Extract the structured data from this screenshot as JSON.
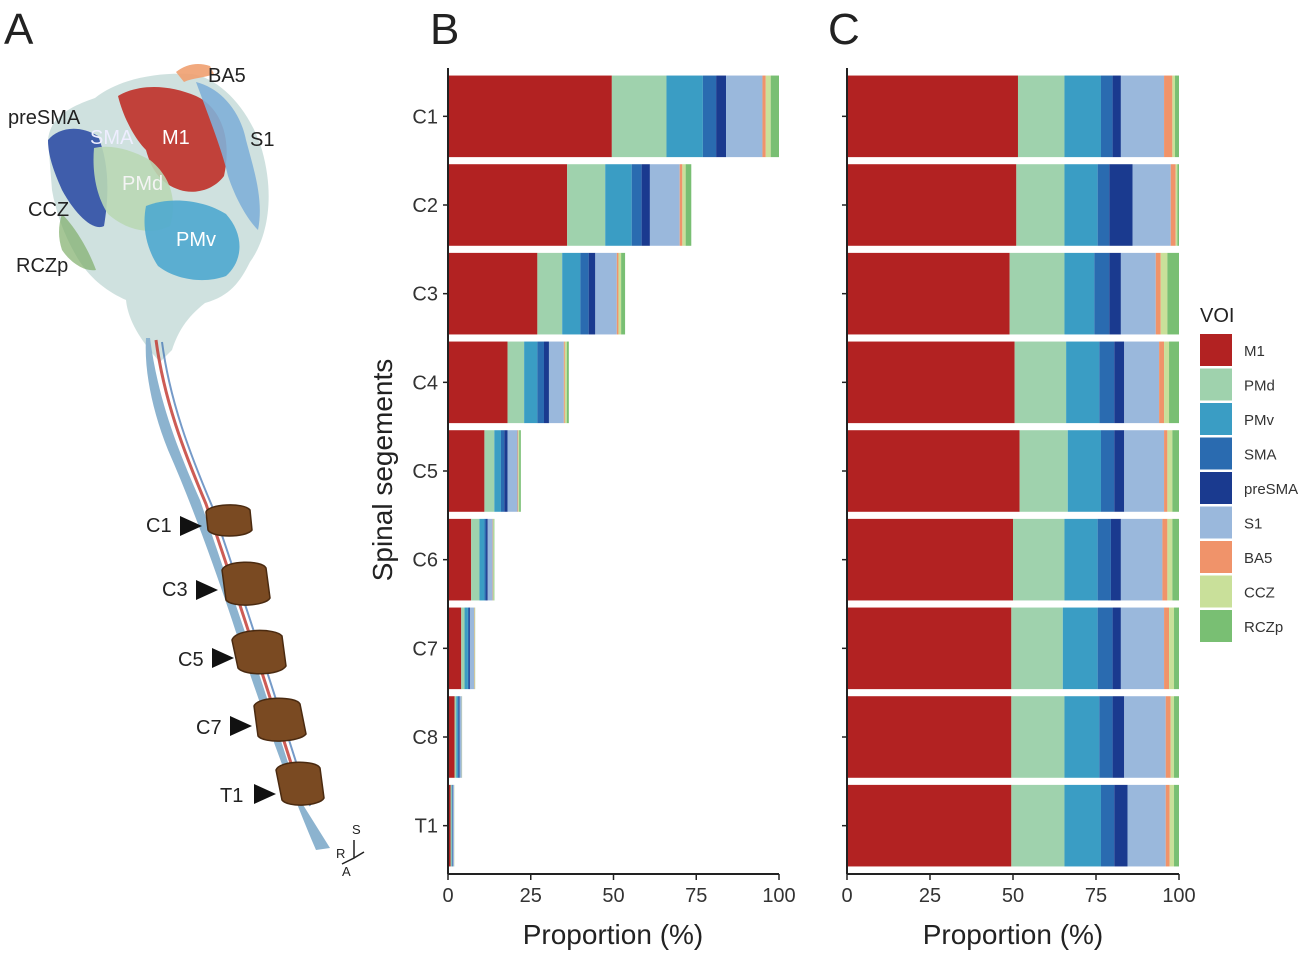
{
  "panels": {
    "a": {
      "label": "A"
    },
    "b": {
      "label": "B"
    },
    "c": {
      "label": "C"
    }
  },
  "anatomy": {
    "region_labels": [
      "BA5",
      "preSMA",
      "SMA",
      "M1",
      "S1",
      "PMd",
      "CCZ",
      "PMv",
      "RCZp"
    ],
    "segment_markers": [
      "C1",
      "C3",
      "C5",
      "C7",
      "T1"
    ],
    "orientation": {
      "s": "S",
      "r": "R",
      "a": "A"
    }
  },
  "colors": {
    "M1": "#b22222",
    "PMd": "#9fd2ad",
    "PMv": "#3a9dc4",
    "SMA": "#2a6bb0",
    "preSMA": "#1a3a8f",
    "S1": "#9ab8dc",
    "BA5": "#f0936a",
    "CCZ": "#c9e09a",
    "RCZp": "#79bf73",
    "background": "#ffffff",
    "axis": "#222222"
  },
  "chart_data": [
    {
      "type": "bar",
      "orientation": "horizontal",
      "stacked": true,
      "panel": "B",
      "categories": [
        "C1",
        "C2",
        "C3",
        "C4",
        "C5",
        "C6",
        "C7",
        "C8",
        "T1"
      ],
      "xlabel": "Proportion (%)",
      "ylabel": "Spinal segements",
      "xlim": [
        0,
        100
      ],
      "xticks": [
        0,
        25,
        50,
        75,
        100
      ],
      "grid": false,
      "series": [
        {
          "name": "M1",
          "values": [
            49.5,
            36,
            27,
            18,
            11,
            7,
            4,
            2,
            0.8
          ]
        },
        {
          "name": "PMd",
          "values": [
            16.5,
            11.5,
            7.5,
            5,
            3,
            2.5,
            1,
            0.5,
            0.3
          ]
        },
        {
          "name": "PMv",
          "values": [
            11,
            8,
            5.5,
            4,
            2,
            1.5,
            1,
            0.5,
            0.2
          ]
        },
        {
          "name": "SMA",
          "values": [
            4,
            3,
            2.5,
            2,
            1,
            0.5,
            0.4,
            0.3,
            0.1
          ]
        },
        {
          "name": "preSMA",
          "values": [
            3,
            2.5,
            2,
            1.5,
            1,
            0.5,
            0.3,
            0.2,
            0.1
          ]
        },
        {
          "name": "S1",
          "values": [
            11,
            9,
            6.5,
            4.5,
            3,
            1.5,
            1.2,
            0.6,
            0.3
          ]
        },
        {
          "name": "BA5",
          "values": [
            1,
            0.8,
            0.5,
            0.3,
            0.2,
            0.1,
            0.1,
            0.05,
            0.03
          ]
        },
        {
          "name": "CCZ",
          "values": [
            1.5,
            1,
            0.8,
            0.6,
            0.3,
            0.2,
            0.1,
            0.05,
            0.03
          ]
        },
        {
          "name": "RCZp",
          "values": [
            2.5,
            1.7,
            1.2,
            0.6,
            0.5,
            0.2,
            0.1,
            0.05,
            0.04
          ]
        }
      ]
    },
    {
      "type": "bar",
      "orientation": "horizontal",
      "stacked": true,
      "panel": "C",
      "categories": [
        "C1",
        "C2",
        "C3",
        "C4",
        "C5",
        "C6",
        "C7",
        "C8",
        "T1"
      ],
      "xlabel": "Proportion (%)",
      "xlim": [
        0,
        100
      ],
      "xticks": [
        0,
        25,
        50,
        75,
        100
      ],
      "grid": false,
      "series": [
        {
          "name": "M1",
          "values": [
            51.5,
            51,
            49,
            50.5,
            52,
            50,
            49.5,
            49.5,
            49.5
          ]
        },
        {
          "name": "PMd",
          "values": [
            14,
            14.5,
            16.5,
            15.5,
            14.5,
            15.5,
            15.5,
            16,
            16
          ]
        },
        {
          "name": "PMv",
          "values": [
            11,
            10,
            9,
            10,
            10,
            10,
            10.5,
            10.5,
            11
          ]
        },
        {
          "name": "SMA",
          "values": [
            3.5,
            3.5,
            4.5,
            4.5,
            4,
            4,
            4.5,
            4,
            4
          ]
        },
        {
          "name": "preSMA",
          "values": [
            2.5,
            7,
            3.5,
            3,
            3,
            3,
            2.5,
            3.5,
            4
          ]
        },
        {
          "name": "S1",
          "values": [
            13,
            11.5,
            10.5,
            10.5,
            12,
            12.5,
            13,
            12.5,
            11.5
          ]
        },
        {
          "name": "BA5",
          "values": [
            2.5,
            1.5,
            1.5,
            1.5,
            1,
            1.5,
            1.5,
            1.5,
            1.2
          ]
        },
        {
          "name": "CCZ",
          "values": [
            0.8,
            0.5,
            2,
            1.5,
            1.5,
            1.5,
            1.5,
            1,
            1.3
          ]
        },
        {
          "name": "RCZp",
          "values": [
            1.2,
            0.5,
            3.5,
            3,
            2,
            2,
            1.5,
            1.5,
            1.5
          ]
        }
      ]
    }
  ],
  "legend": {
    "title": "VOI",
    "placement": "right",
    "items": [
      "M1",
      "PMd",
      "PMv",
      "SMA",
      "preSMA",
      "S1",
      "BA5",
      "CCZ",
      "RCZp"
    ]
  }
}
